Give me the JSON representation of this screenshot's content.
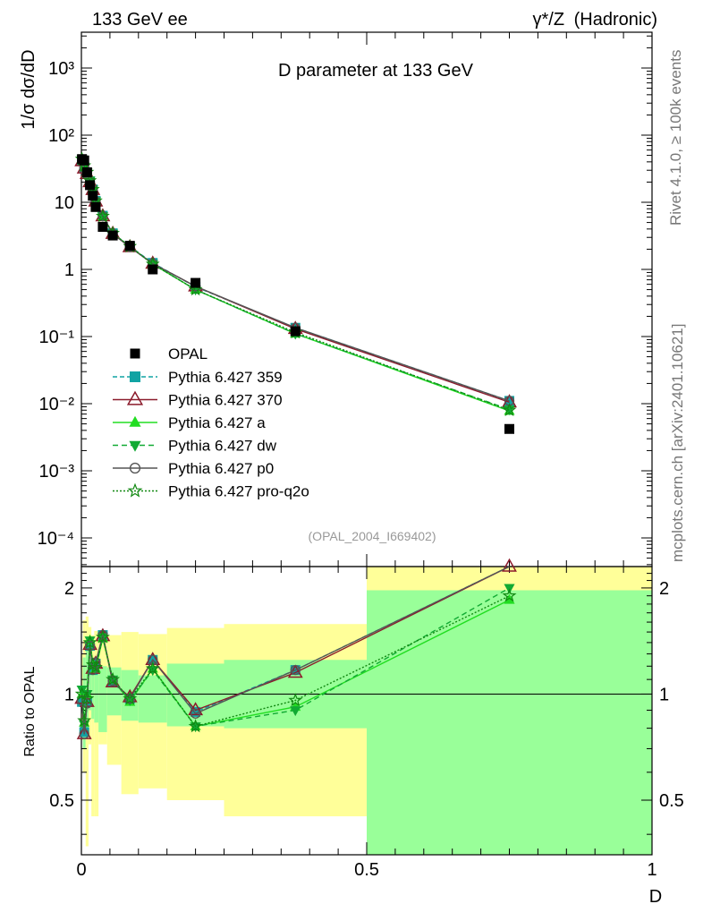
{
  "header": {
    "left": "133 GeV ee",
    "right_prefix": "γ*/Z",
    "right_suffix": "(Hadronic)"
  },
  "side_labels": {
    "rivet": "Rivet 4.1.0, ≥ 100k events",
    "mcplots": "mcplots.cern.ch [arXiv:2401.10621]"
  },
  "chart_data": {
    "type": "line",
    "title": "D parameter at 133 GeV",
    "analysis_tag": "(OPAL_2004_I669402)",
    "xlabel": "D",
    "ylabel": "1/σ dσ/dD",
    "ratio_ylabel": "Ratio to OPAL",
    "xlim": [
      0,
      1
    ],
    "ylim": [
      2e-05,
      4000
    ],
    "yscale": "log",
    "ratio_ylim": [
      0.35,
      2.3
    ],
    "x_tick_labels": [
      "0",
      "0.5",
      "1"
    ],
    "y_tick_labels": [
      "10⁻⁴",
      "10⁻³",
      "10⁻²",
      "10⁻¹",
      "1",
      "10",
      "10²",
      "10³"
    ],
    "ratio_tick_labels": [
      "0.5",
      "1",
      "2"
    ],
    "legend_position": "lower-left",
    "data": {
      "name": "OPAL",
      "x": [
        0.001,
        0.005,
        0.01,
        0.015,
        0.02,
        0.025,
        0.0375,
        0.055,
        0.085,
        0.125,
        0.2,
        0.375,
        0.75
      ],
      "y": [
        44,
        42,
        28,
        18,
        12.5,
        8.5,
        4.3,
        3.2,
        2.25,
        1.0,
        0.63,
        0.12,
        0.0042
      ]
    },
    "bands": {
      "edges": [
        0,
        0.0025,
        0.0075,
        0.0125,
        0.0175,
        0.0225,
        0.03,
        0.045,
        0.07,
        0.1,
        0.15,
        0.25,
        0.5,
        1.0
      ],
      "green_lo": [
        0.96,
        0.7,
        0.79,
        0.9,
        0.85,
        0.83,
        0.78,
        0.87,
        0.84,
        0.83,
        0.81,
        0.8,
        0.35
      ],
      "green_hi": [
        1.06,
        1.27,
        1.35,
        1.27,
        1.22,
        1.2,
        1.2,
        1.19,
        1.17,
        1.13,
        1.22,
        1.25,
        1.97
      ],
      "yellow_lo": [
        0.74,
        0.6,
        0.37,
        0.72,
        0.45,
        0.45,
        0.72,
        0.63,
        0.52,
        0.54,
        0.5,
        0.45,
        0.35
      ],
      "yellow_hi": [
        1.3,
        1.62,
        1.66,
        1.55,
        1.47,
        1.51,
        1.44,
        1.47,
        1.5,
        1.48,
        1.54,
        1.58,
        2.3
      ]
    },
    "series": [
      {
        "name": "Pythia 6.427 359",
        "color": "#11a3a3",
        "dash": "5,3",
        "marker": "square",
        "x": [
          0.001,
          0.005,
          0.01,
          0.015,
          0.02,
          0.025,
          0.0375,
          0.055,
          0.085,
          0.125,
          0.2,
          0.375,
          0.75
        ],
        "y": [
          42,
          33,
          27,
          20.5,
          15.5,
          10.5,
          6.3,
          3.45,
          2.2,
          1.25,
          0.55,
          0.135,
          0.011
        ],
        "ratio": [
          0.95,
          0.78,
          0.95,
          1.37,
          1.17,
          1.22,
          1.47,
          1.08,
          0.97,
          1.25,
          0.89,
          1.17,
          2.33
        ]
      },
      {
        "name": "Pythia 6.427 370",
        "color": "#8b1a2b",
        "dash": "",
        "marker": "triangle-open",
        "x": [
          0.001,
          0.005,
          0.01,
          0.015,
          0.02,
          0.025,
          0.0375,
          0.055,
          0.085,
          0.125,
          0.2,
          0.375,
          0.75
        ],
        "y": [
          41,
          32,
          26.5,
          20,
          15.3,
          10.3,
          6.2,
          3.4,
          2.15,
          1.22,
          0.56,
          0.13,
          0.0105
        ],
        "ratio": [
          0.97,
          0.77,
          0.95,
          1.38,
          1.18,
          1.22,
          1.46,
          1.08,
          0.98,
          1.25,
          0.9,
          1.15,
          2.3
        ]
      },
      {
        "name": "Pythia 6.427 a",
        "color": "#22dd22",
        "dash": "",
        "marker": "triangle",
        "x": [
          0.001,
          0.005,
          0.01,
          0.015,
          0.02,
          0.025,
          0.0375,
          0.055,
          0.085,
          0.125,
          0.2,
          0.375,
          0.75
        ],
        "y": [
          44,
          35,
          28,
          21,
          15.5,
          10.5,
          6.2,
          3.4,
          2.2,
          1.2,
          0.5,
          0.11,
          0.0078
        ],
        "ratio": [
          1.0,
          0.83,
          1.0,
          1.42,
          1.22,
          1.18,
          1.44,
          1.1,
          0.95,
          1.18,
          0.81,
          0.92,
          1.85
        ]
      },
      {
        "name": "Pythia 6.427 dw",
        "color": "#11aa33",
        "dash": "6,4",
        "marker": "triangle-down",
        "x": [
          0.001,
          0.005,
          0.01,
          0.015,
          0.02,
          0.025,
          0.0375,
          0.055,
          0.085,
          0.125,
          0.2,
          0.375,
          0.75
        ],
        "y": [
          44,
          34,
          28,
          21,
          15.5,
          10.4,
          6.2,
          3.4,
          2.2,
          1.2,
          0.5,
          0.11,
          0.0082
        ],
        "ratio": [
          1.03,
          0.82,
          1.0,
          1.42,
          1.2,
          1.18,
          1.45,
          1.1,
          0.96,
          1.17,
          0.81,
          0.9,
          2.0
        ]
      },
      {
        "name": "Pythia 6.427 p0",
        "color": "#555555",
        "dash": "",
        "marker": "circle-open",
        "x": [
          0.001,
          0.005,
          0.01,
          0.015,
          0.02,
          0.025,
          0.0375,
          0.055,
          0.085,
          0.125,
          0.2,
          0.375,
          0.75
        ],
        "y": [
          41,
          32,
          26.5,
          20,
          15.3,
          10.3,
          6.2,
          3.4,
          2.15,
          1.22,
          0.56,
          0.135,
          0.011
        ],
        "ratio": [
          0.96,
          0.77,
          0.94,
          1.37,
          1.17,
          1.23,
          1.47,
          1.09,
          0.97,
          1.25,
          0.88,
          1.17,
          2.33
        ]
      },
      {
        "name": "Pythia 6.427 pro-q2o",
        "color": "#118811",
        "dash": "2,2",
        "marker": "star-open",
        "x": [
          0.001,
          0.005,
          0.01,
          0.015,
          0.02,
          0.025,
          0.0375,
          0.055,
          0.085,
          0.125,
          0.2,
          0.375,
          0.75
        ],
        "y": [
          44,
          35,
          28,
          21,
          15.5,
          10.5,
          6.2,
          3.45,
          2.2,
          1.2,
          0.5,
          0.115,
          0.008
        ],
        "ratio": [
          1.0,
          0.84,
          0.97,
          1.4,
          1.21,
          1.19,
          1.45,
          1.1,
          0.97,
          1.18,
          0.81,
          0.96,
          1.9
        ]
      }
    ]
  }
}
